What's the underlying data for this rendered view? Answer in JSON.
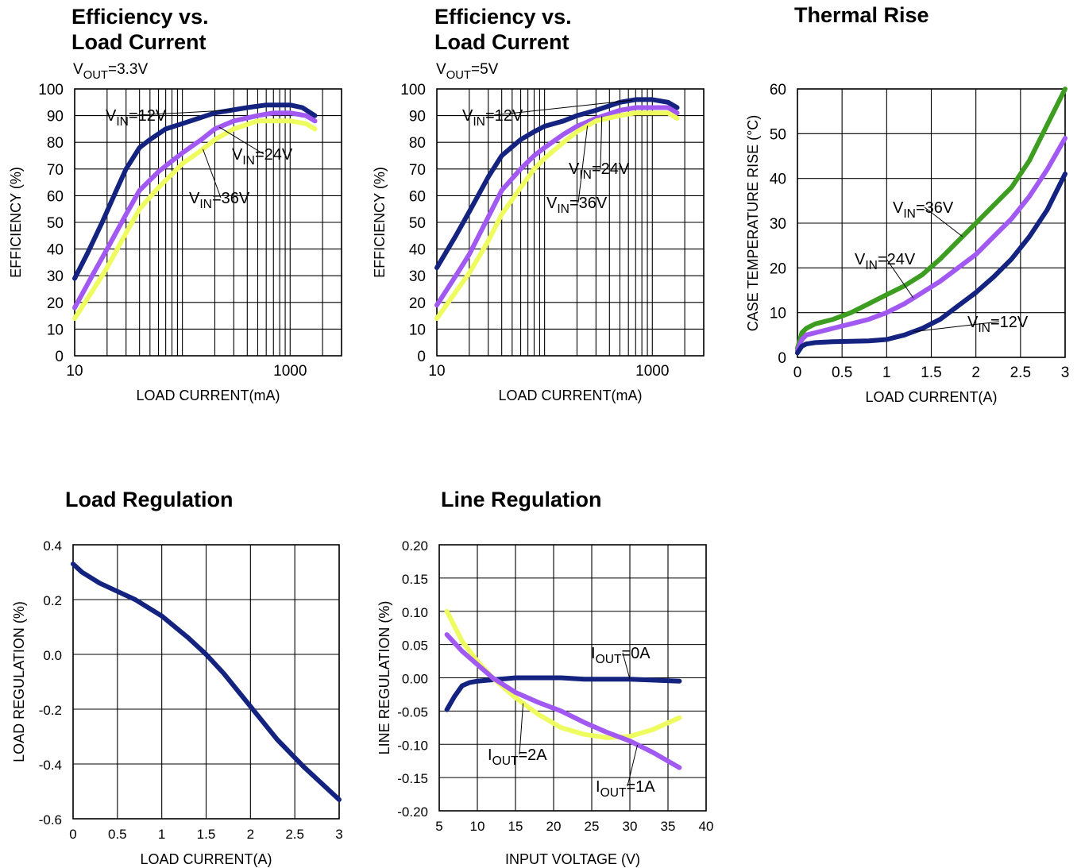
{
  "colors": {
    "navy": "#13237f",
    "purple": "#a259f2",
    "yellow": "#eefc5f",
    "green": "#3d9d21",
    "grid": "#000000"
  },
  "chart_data": [
    {
      "id": "eff33",
      "type": "line",
      "title_lines": [
        "Efficiency vs.",
        "Load Current"
      ],
      "condition": {
        "main": "V",
        "sub": "OUT",
        "rest": "=3.3V"
      },
      "xlabel": "LOAD CURRENT(mA)",
      "ylabel": "EFFICIENCY (%)",
      "xscale": "log",
      "xlim": [
        10,
        3000
      ],
      "ylim": [
        0,
        100
      ],
      "xticks": [
        10,
        1000
      ],
      "yticks": [
        0,
        10,
        20,
        30,
        40,
        50,
        60,
        70,
        80,
        90,
        100
      ],
      "grid": true,
      "series": [
        {
          "name": "VIN=12V",
          "color": "navy",
          "x": [
            10,
            13,
            18,
            25,
            30,
            40,
            50,
            70,
            100,
            200,
            400,
            600,
            800,
            1000,
            1300,
            1700
          ],
          "y": [
            29,
            38,
            50,
            63,
            70,
            78,
            81,
            85,
            87,
            91,
            93,
            94,
            94,
            94,
            93,
            90
          ]
        },
        {
          "name": "VIN=24V",
          "color": "purple",
          "x": [
            10,
            15,
            20,
            30,
            40,
            60,
            80,
            100,
            150,
            200,
            300,
            500,
            700,
            1000,
            1400,
            1700
          ],
          "y": [
            18,
            31,
            40,
            53,
            62,
            69,
            73,
            76,
            81,
            85,
            88,
            90,
            91,
            91,
            90,
            88
          ]
        },
        {
          "name": "VIN=36V",
          "color": "yellow",
          "x": [
            10,
            15,
            20,
            30,
            40,
            60,
            80,
            100,
            150,
            200,
            300,
            500,
            700,
            1000,
            1400,
            1700
          ],
          "y": [
            14,
            25,
            33,
            46,
            55,
            63,
            68,
            72,
            77,
            81,
            85,
            88,
            88,
            88,
            87,
            85
          ]
        }
      ],
      "annotations": [
        {
          "series": "VIN=12V",
          "main": "V",
          "sub": "IN",
          "rest": "=12V"
        },
        {
          "series": "VIN=24V",
          "main": "V",
          "sub": "IN",
          "rest": "=24V"
        },
        {
          "series": "VIN=36V",
          "main": "V",
          "sub": "IN",
          "rest": "=36V"
        }
      ]
    },
    {
      "id": "eff5",
      "type": "line",
      "title_lines": [
        "Efficiency vs.",
        "Load Current"
      ],
      "condition": {
        "main": "V",
        "sub": "OUT",
        "rest": "=5V"
      },
      "xlabel": "LOAD CURRENT(mA)",
      "ylabel": "EFFICIENCY (%)",
      "xscale": "log",
      "xlim": [
        10,
        3000
      ],
      "ylim": [
        0,
        100
      ],
      "xticks": [
        10,
        1000
      ],
      "yticks": [
        0,
        10,
        20,
        30,
        40,
        50,
        60,
        70,
        80,
        90,
        100
      ],
      "grid": true,
      "series": [
        {
          "name": "VIN=12V",
          "color": "navy",
          "x": [
            10,
            15,
            20,
            30,
            40,
            60,
            80,
            100,
            150,
            200,
            300,
            500,
            700,
            1000,
            1400,
            1700
          ],
          "y": [
            33,
            45,
            54,
            67,
            75,
            81,
            84,
            86,
            88,
            90,
            92,
            95,
            96,
            96,
            95,
            93
          ]
        },
        {
          "name": "VIN=24V",
          "color": "purple",
          "x": [
            10,
            15,
            20,
            30,
            40,
            60,
            80,
            100,
            150,
            200,
            300,
            500,
            700,
            1000,
            1400,
            1700
          ],
          "y": [
            19,
            30,
            38,
            52,
            62,
            70,
            75,
            78,
            83,
            86,
            89,
            92,
            93,
            93,
            93,
            91
          ]
        },
        {
          "name": "VIN=36V",
          "color": "yellow",
          "x": [
            10,
            15,
            20,
            30,
            40,
            60,
            80,
            100,
            150,
            200,
            300,
            500,
            700,
            1000,
            1400,
            1700
          ],
          "y": [
            14,
            24,
            31,
            43,
            53,
            63,
            70,
            74,
            80,
            84,
            88,
            90,
            91,
            91,
            91,
            89
          ]
        }
      ],
      "annotations": [
        {
          "series": "VIN=12V",
          "main": "V",
          "sub": "IN",
          "rest": "=12V"
        },
        {
          "series": "VIN=24V",
          "main": "V",
          "sub": "IN",
          "rest": "=24V"
        },
        {
          "series": "VIN=36V",
          "main": "V",
          "sub": "IN",
          "rest": "=36V"
        }
      ]
    },
    {
      "id": "thermal",
      "type": "line",
      "title_lines": [
        "Thermal Rise"
      ],
      "xlabel": "LOAD CURRENT(A)",
      "ylabel": "CASE TEMPERATURE RISE (°C)",
      "xlim": [
        0,
        3
      ],
      "ylim": [
        0,
        60
      ],
      "xticks": [
        0,
        0.5,
        1,
        1.5,
        2,
        2.5,
        3
      ],
      "xtick_labels": [
        "0",
        "0.5",
        "1",
        "1.5",
        "2",
        "2.5",
        "3"
      ],
      "yticks": [
        0,
        10,
        20,
        30,
        40,
        50,
        60
      ],
      "grid": true,
      "series": [
        {
          "name": "VIN=36V",
          "color": "green",
          "x": [
            0,
            0.05,
            0.1,
            0.2,
            0.4,
            0.6,
            0.8,
            1.0,
            1.2,
            1.4,
            1.6,
            1.8,
            2.0,
            2.2,
            2.4,
            2.6,
            2.8,
            3.0
          ],
          "y": [
            2,
            5.5,
            6.5,
            7.5,
            8.5,
            10,
            12,
            14,
            16,
            18.5,
            22,
            26,
            30,
            34,
            38,
            44,
            52,
            60
          ]
        },
        {
          "name": "VIN=24V",
          "color": "purple",
          "x": [
            0,
            0.05,
            0.1,
            0.2,
            0.4,
            0.6,
            0.8,
            1.0,
            1.2,
            1.4,
            1.6,
            1.8,
            2.0,
            2.2,
            2.4,
            2.6,
            2.8,
            3.0
          ],
          "y": [
            1.5,
            4,
            5,
            5.5,
            6.5,
            7.5,
            8.5,
            10,
            12,
            14.5,
            17,
            20,
            23,
            27,
            31,
            36,
            42,
            49
          ]
        },
        {
          "name": "VIN=12V",
          "color": "navy",
          "x": [
            0,
            0.05,
            0.1,
            0.2,
            0.4,
            0.6,
            0.8,
            1.0,
            1.2,
            1.4,
            1.6,
            1.8,
            2.0,
            2.2,
            2.4,
            2.6,
            2.8,
            3.0
          ],
          "y": [
            1,
            2.5,
            3,
            3.3,
            3.5,
            3.6,
            3.7,
            4,
            5,
            6.5,
            8.5,
            11.5,
            14.5,
            18,
            22,
            27,
            33,
            41
          ]
        }
      ],
      "annotations": [
        {
          "series": "VIN=36V",
          "main": "V",
          "sub": "IN",
          "rest": "=36V"
        },
        {
          "series": "VIN=24V",
          "main": "V",
          "sub": "IN",
          "rest": "=24V"
        },
        {
          "series": "VIN=12V",
          "main": "V",
          "sub": "IN",
          "rest": "=12V"
        }
      ]
    },
    {
      "id": "loadreg",
      "type": "line",
      "title_lines": [
        "Load Regulation"
      ],
      "xlabel": "LOAD CURRENT(A)",
      "ylabel": "LOAD REGULATION  (%)",
      "xlim": [
        0,
        3
      ],
      "ylim": [
        -0.6,
        0.4
      ],
      "xticks": [
        0,
        0.5,
        1,
        1.5,
        2,
        2.5,
        3
      ],
      "xtick_labels": [
        "0",
        "0.5",
        "1",
        "1.5",
        "2",
        "2.5",
        "3"
      ],
      "yticks": [
        -0.6,
        -0.4,
        -0.2,
        0.0,
        0.2,
        0.4
      ],
      "ytick_labels": [
        "-0.6",
        "-0.4",
        "-0.2",
        "0.0",
        "0.2",
        "0.4"
      ],
      "grid": true,
      "series": [
        {
          "name": "",
          "color": "navy",
          "x": [
            0,
            0.1,
            0.3,
            0.5,
            0.7,
            1.0,
            1.3,
            1.5,
            1.7,
            2.0,
            2.3,
            2.6,
            3.0
          ],
          "y": [
            0.33,
            0.3,
            0.26,
            0.23,
            0.2,
            0.14,
            0.06,
            0.0,
            -0.07,
            -0.19,
            -0.31,
            -0.41,
            -0.53
          ]
        }
      ],
      "annotations": []
    },
    {
      "id": "linereg",
      "type": "line",
      "title_lines": [
        "Line Regulation"
      ],
      "xlabel": "INPUT VOLTAGE (V)",
      "ylabel": "LINE REGULATION  (%)",
      "xlim": [
        5,
        40
      ],
      "ylim": [
        -0.2,
        0.2
      ],
      "xticks": [
        5,
        10,
        15,
        20,
        25,
        30,
        35,
        40
      ],
      "yticks": [
        -0.2,
        -0.15,
        -0.1,
        -0.05,
        0.0,
        0.05,
        0.1,
        0.15,
        0.2
      ],
      "ytick_labels": [
        "-0.20",
        "-0.15",
        "-0.10",
        "-0.05",
        "0.00",
        "0.05",
        "0.10",
        "0.15",
        "0.20"
      ],
      "grid": true,
      "series": [
        {
          "name": "IOUT=0A",
          "color": "navy",
          "x": [
            6,
            7,
            8,
            9,
            10,
            12,
            15,
            18,
            21,
            24,
            30,
            36.5
          ],
          "y": [
            -0.048,
            -0.028,
            -0.012,
            -0.007,
            -0.005,
            -0.003,
            0.0,
            0.0,
            0.0,
            -0.002,
            -0.002,
            -0.005
          ]
        },
        {
          "name": "IOUT=2A",
          "color": "yellow",
          "x": [
            6,
            8,
            10,
            12,
            15,
            18,
            21,
            24,
            27,
            30,
            33,
            36.5
          ],
          "y": [
            0.1,
            0.055,
            0.025,
            0.0,
            -0.03,
            -0.055,
            -0.075,
            -0.085,
            -0.09,
            -0.088,
            -0.078,
            -0.06
          ]
        },
        {
          "name": "IOUT=1A",
          "color": "purple",
          "x": [
            6,
            8,
            10,
            12,
            15,
            18,
            21,
            24,
            27,
            30,
            33,
            36.5
          ],
          "y": [
            0.065,
            0.04,
            0.02,
            0.0,
            -0.022,
            -0.037,
            -0.05,
            -0.067,
            -0.082,
            -0.095,
            -0.112,
            -0.135
          ]
        }
      ],
      "annotations": [
        {
          "series": "IOUT=0A",
          "main": "I",
          "sub": "OUT",
          "rest": "=0A"
        },
        {
          "series": "IOUT=2A",
          "main": "I",
          "sub": "OUT",
          "rest": "=2A"
        },
        {
          "series": "IOUT=1A",
          "main": "I",
          "sub": "OUT",
          "rest": "=1A"
        }
      ]
    }
  ]
}
